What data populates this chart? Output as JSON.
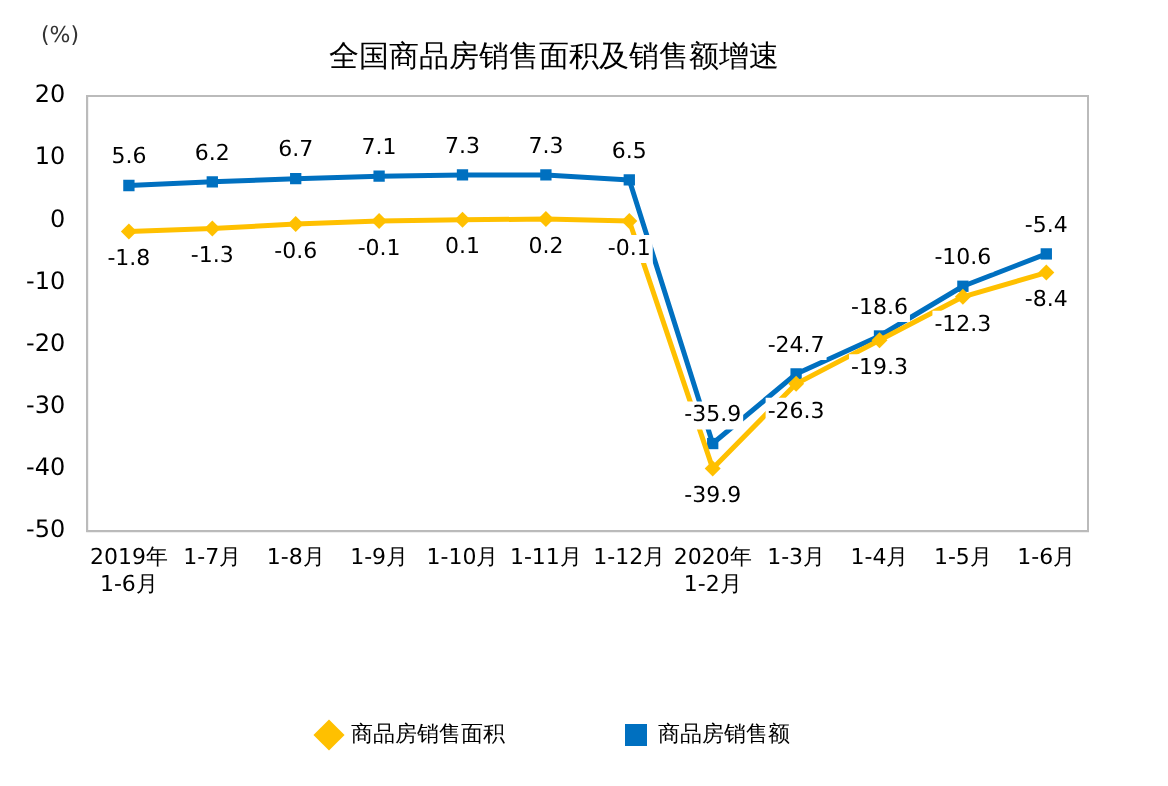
{
  "chart_data": {
    "type": "line",
    "title": "全国商品房销售面积及销售额增速",
    "ylabel": "(%)",
    "categories": [
      "2019年\n1-6月",
      "1-7月",
      "1-8月",
      "1-9月",
      "1-10月",
      "1-11月",
      "1-12月",
      "2020年\n1-2月",
      "1-3月",
      "1-4月",
      "1-5月",
      "1-6月"
    ],
    "series": [
      {
        "name": "商品房销售面积",
        "color": "#ffc000",
        "marker": "diamond",
        "values": [
          -1.8,
          -1.3,
          -0.6,
          -0.1,
          0.1,
          0.2,
          -0.1,
          -39.9,
          -26.3,
          -19.3,
          -12.3,
          -8.4
        ]
      },
      {
        "name": "商品房销售额",
        "color": "#0070c0",
        "marker": "square",
        "values": [
          5.6,
          6.2,
          6.7,
          7.1,
          7.3,
          7.3,
          6.5,
          -35.9,
          -24.7,
          -18.6,
          -10.6,
          -5.4
        ]
      }
    ],
    "ylim": [
      -50,
      20
    ],
    "yticks": [
      -50,
      -40,
      -30,
      -20,
      -10,
      0,
      10,
      20
    ],
    "grid": false,
    "legend": "bottom",
    "data_labels": true
  }
}
